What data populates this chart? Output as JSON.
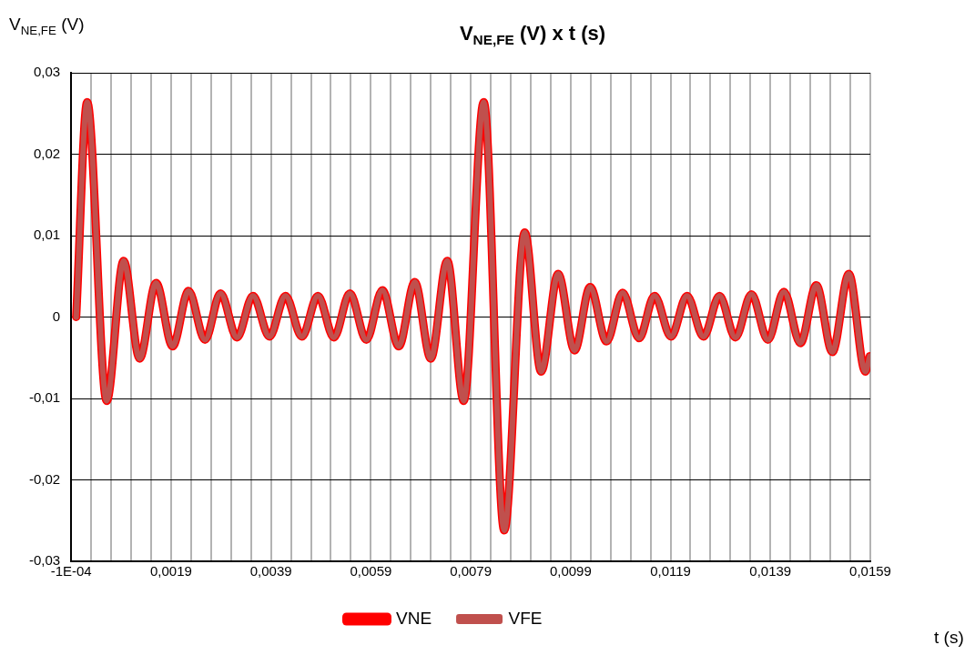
{
  "chart_data": {
    "type": "line",
    "title": "V$_{NE,FE}$ (V) x t (s)",
    "ylabel": "V$_{NE,FE}$ (V)",
    "xlabel": "t (s)",
    "x": [
      0,
      0.00022,
      0.00061,
      0.00095,
      0.00127,
      0.0016,
      0.00193,
      0.00225,
      0.00258,
      0.00289,
      0.00322,
      0.00354,
      0.00387,
      0.00419,
      0.00452,
      0.00484,
      0.00516,
      0.00548,
      0.00581,
      0.00613,
      0.00646,
      0.00678,
      0.0071,
      0.00743,
      0.00776,
      0.00816,
      0.00857,
      0.00898,
      0.00931,
      0.00965,
      0.00998,
      0.01029,
      0.01062,
      0.01094,
      0.01127,
      0.01158,
      0.01191,
      0.01223,
      0.01256,
      0.01288,
      0.0132,
      0.01352,
      0.01385,
      0.01417,
      0.0145,
      0.01482,
      0.01514,
      0.01547,
      0.0158,
      0.01589
    ],
    "series": [
      {
        "name": "VNE",
        "color": "#ff0000",
        "values": [
          0,
          0.0264,
          -0.0103,
          0.0069,
          -0.0051,
          0.0042,
          -0.0036,
          0.0032,
          -0.0028,
          0.0029,
          -0.0025,
          0.0026,
          -0.0024,
          0.0026,
          -0.0024,
          0.0026,
          -0.0025,
          0.0029,
          -0.0028,
          0.0033,
          -0.0036,
          0.0043,
          -0.0051,
          0.0069,
          -0.0103,
          0.0264,
          -0.0262,
          0.0104,
          -0.0067,
          0.0053,
          -0.0041,
          0.0037,
          -0.003,
          0.003,
          -0.0026,
          0.0026,
          -0.0024,
          0.0026,
          -0.0024,
          0.0026,
          -0.0025,
          0.0028,
          -0.0028,
          0.0031,
          -0.0032,
          0.0039,
          -0.0043,
          0.0053,
          -0.0067,
          -0.0048
        ]
      },
      {
        "name": "VFE",
        "color": "#c0504d",
        "values": [
          0,
          0.0264,
          -0.0103,
          0.0069,
          -0.0051,
          0.0042,
          -0.0036,
          0.0032,
          -0.0028,
          0.0029,
          -0.0025,
          0.0026,
          -0.0024,
          0.0026,
          -0.0024,
          0.0026,
          -0.0025,
          0.0029,
          -0.0028,
          0.0033,
          -0.0036,
          0.0043,
          -0.0051,
          0.0069,
          -0.0103,
          0.0264,
          -0.0262,
          0.0104,
          -0.0067,
          0.0053,
          -0.0041,
          0.0037,
          -0.003,
          0.003,
          -0.0026,
          0.0026,
          -0.0024,
          0.0026,
          -0.0024,
          0.0026,
          -0.0025,
          0.0028,
          -0.0028,
          0.0031,
          -0.0032,
          0.0039,
          -0.0043,
          0.0053,
          -0.0067,
          -0.0048
        ]
      }
    ],
    "xlim": [
      -0.0001,
      0.0159
    ],
    "xticks": [
      {
        "value": -0.0001,
        "label": "-1E-04"
      },
      {
        "value": 0.0003,
        "label": null
      },
      {
        "value": 0.0007,
        "label": null
      },
      {
        "value": 0.0011,
        "label": null
      },
      {
        "value": 0.0015,
        "label": null
      },
      {
        "value": 0.0019,
        "label": "0,0019"
      },
      {
        "value": 0.0023,
        "label": null
      },
      {
        "value": 0.0027,
        "label": null
      },
      {
        "value": 0.0031,
        "label": null
      },
      {
        "value": 0.0035,
        "label": null
      },
      {
        "value": 0.0039,
        "label": "0,0039"
      },
      {
        "value": 0.0043,
        "label": null
      },
      {
        "value": 0.0047,
        "label": null
      },
      {
        "value": 0.0051,
        "label": null
      },
      {
        "value": 0.0055,
        "label": null
      },
      {
        "value": 0.0059,
        "label": "0,0059"
      },
      {
        "value": 0.0063,
        "label": null
      },
      {
        "value": 0.0067,
        "label": null
      },
      {
        "value": 0.0071,
        "label": null
      },
      {
        "value": 0.0075,
        "label": null
      },
      {
        "value": 0.0079,
        "label": "0,0079"
      },
      {
        "value": 0.0083,
        "label": null
      },
      {
        "value": 0.0087,
        "label": null
      },
      {
        "value": 0.0091,
        "label": null
      },
      {
        "value": 0.0095,
        "label": null
      },
      {
        "value": 0.0099,
        "label": "0,0099"
      },
      {
        "value": 0.0103,
        "label": null
      },
      {
        "value": 0.0107,
        "label": null
      },
      {
        "value": 0.0111,
        "label": null
      },
      {
        "value": 0.0115,
        "label": null
      },
      {
        "value": 0.0119,
        "label": "0,0119"
      },
      {
        "value": 0.0123,
        "label": null
      },
      {
        "value": 0.0127,
        "label": null
      },
      {
        "value": 0.0131,
        "label": null
      },
      {
        "value": 0.0135,
        "label": null
      },
      {
        "value": 0.0139,
        "label": "0,0139"
      },
      {
        "value": 0.0143,
        "label": null
      },
      {
        "value": 0.0147,
        "label": null
      },
      {
        "value": 0.0151,
        "label": null
      },
      {
        "value": 0.0155,
        "label": null
      },
      {
        "value": 0.0159,
        "label": "0,0159"
      }
    ],
    "ylim": [
      -0.03,
      0.03
    ],
    "yticks": [
      {
        "value": -0.03,
        "label": "-0,03"
      },
      {
        "value": -0.02,
        "label": "-0,02"
      },
      {
        "value": -0.01,
        "label": "-0,01"
      },
      0,
      {
        "value": 0.01,
        "label": "0,01"
      },
      {
        "value": 0.02,
        "label": "0,02"
      },
      {
        "value": 0.03,
        "label": "0,03"
      }
    ],
    "grid": true,
    "legend": "bottom",
    "marker": "none",
    "line_style": "solid"
  }
}
